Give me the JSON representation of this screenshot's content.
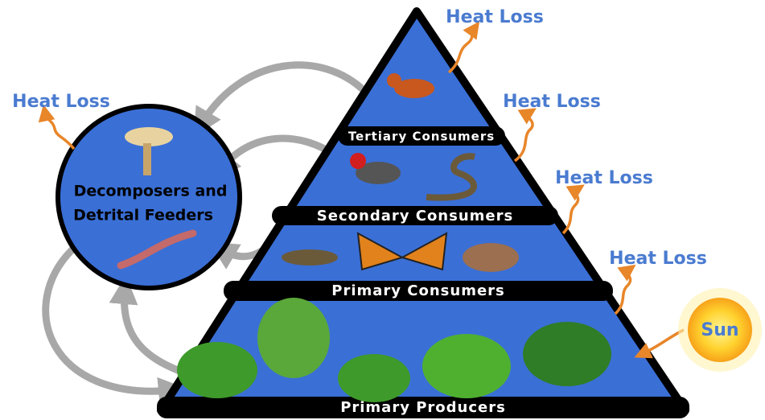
{
  "heat_loss": [
    "Heat Loss",
    "Heat Loss",
    "Heat Loss",
    "Heat Loss",
    "Heat Loss"
  ],
  "sun": {
    "label": "Sun"
  },
  "decomposers": {
    "lines": [
      "Decomposers and",
      "Detrital Feeders"
    ]
  },
  "levels": [
    {
      "label": "Tertiary Consumers"
    },
    {
      "label": "Secondary Consumers"
    },
    {
      "label": "Primary Consumers"
    },
    {
      "label": "Primary Producers"
    }
  ]
}
